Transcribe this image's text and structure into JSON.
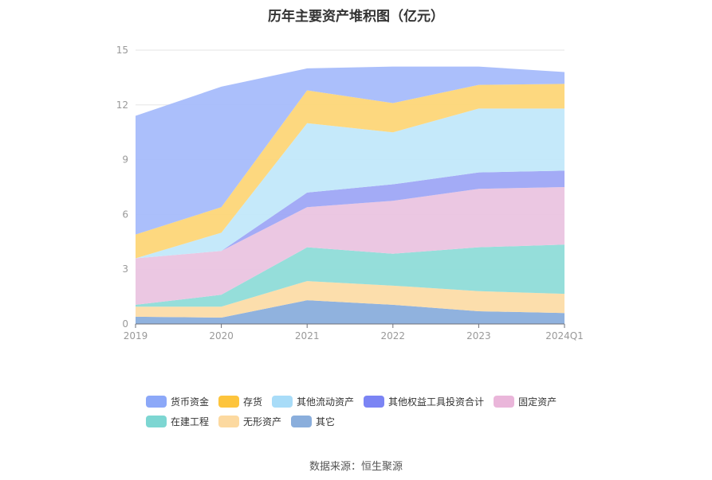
{
  "chart_data": {
    "type": "area",
    "title": "历年主要资产堆积图（亿元）",
    "x": [
      "2019",
      "2020",
      "2021",
      "2022",
      "2023",
      "2024Q1"
    ],
    "ylim": [
      0,
      15
    ],
    "yticks": [
      "0",
      "3",
      "6",
      "9",
      "12",
      "15"
    ],
    "grid": true,
    "legend_position": "bottom",
    "stacked": true,
    "series": [
      {
        "name": "其它",
        "color": "#8aaedc",
        "values": [
          0.4,
          0.35,
          1.3,
          1.05,
          0.7,
          0.6
        ]
      },
      {
        "name": "无形资产",
        "color": "#fcdca8",
        "values": [
          0.55,
          0.6,
          1.05,
          1.05,
          1.1,
          1.05
        ]
      },
      {
        "name": "在建工程",
        "color": "#8fdcd8",
        "values": [
          0.1,
          0.65,
          1.85,
          1.75,
          2.4,
          2.7
        ]
      },
      {
        "name": "固定资产",
        "color": "#eac4e0",
        "values": [
          2.55,
          2.4,
          2.2,
          2.9,
          3.2,
          3.15
        ]
      },
      {
        "name": "其他权益工具投资合计",
        "color": "#9ea6f5",
        "values": [
          0.0,
          0.0,
          0.8,
          0.9,
          0.9,
          0.9
        ]
      },
      {
        "name": "其他流动资产",
        "color": "#c2e8fa",
        "values": [
          0.0,
          1.0,
          3.8,
          2.85,
          3.5,
          3.4
        ]
      },
      {
        "name": "存货",
        "color": "#fdd678",
        "values": [
          1.3,
          1.4,
          1.8,
          1.6,
          1.3,
          1.35
        ]
      },
      {
        "name": "货币资金",
        "color": "#a6bcfb",
        "values": [
          6.5,
          6.6,
          1.2,
          2.0,
          1.0,
          0.65
        ]
      }
    ]
  },
  "legend": [
    {
      "label": "货币资金",
      "color": "#8ca8f8"
    },
    {
      "label": "存货",
      "color": "#fdc43c"
    },
    {
      "label": "其他流动资产",
      "color": "#a8dcf8"
    },
    {
      "label": "其他权益工具投资合计",
      "color": "#7b84f4"
    },
    {
      "label": "固定资产",
      "color": "#eab6da"
    },
    {
      "label": "在建工程",
      "color": "#7dd6d2"
    },
    {
      "label": "无形资产",
      "color": "#fcd9a0"
    },
    {
      "label": "其它",
      "color": "#8aaedc"
    }
  ],
  "source": "数据来源：恒生聚源"
}
